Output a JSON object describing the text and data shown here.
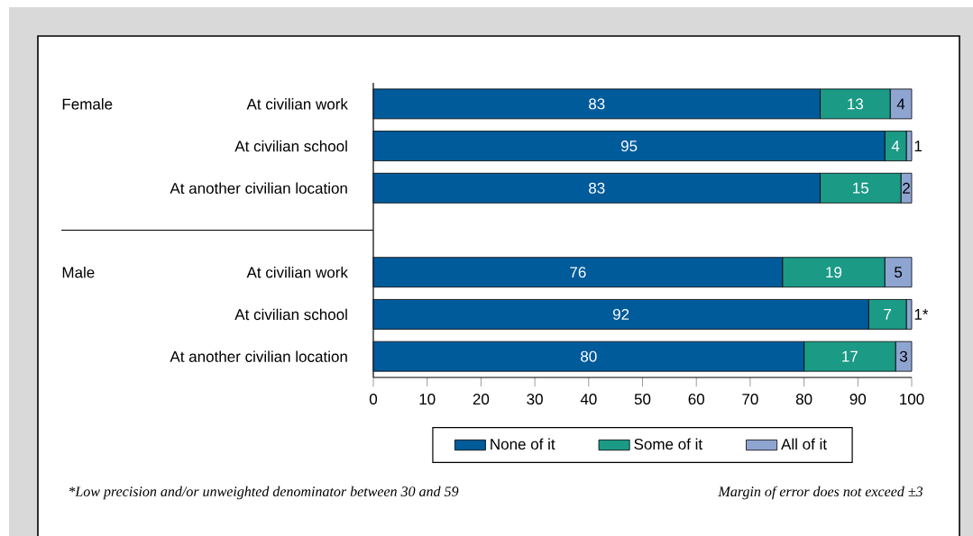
{
  "chart_data": {
    "type": "bar",
    "orientation": "horizontal",
    "stacked": true,
    "categories": [
      "At civilian work",
      "At civilian school",
      "At another civilian location",
      null,
      "At civilian work",
      "At civilian school",
      "At another civilian location"
    ],
    "series": [
      {
        "name": "None of it",
        "color": "#005b9a",
        "values": [
          83,
          95,
          83,
          null,
          76,
          92,
          80
        ],
        "value_labels": [
          "83",
          "95",
          "83",
          null,
          "76",
          "92",
          "80"
        ]
      },
      {
        "name": "Some of it",
        "color": "#1b9a86",
        "values": [
          13,
          4,
          15,
          null,
          19,
          7,
          17
        ],
        "value_labels": [
          "13",
          "4",
          "15",
          null,
          "19",
          "7",
          "17"
        ]
      },
      {
        "name": "All of it",
        "color": "#8fa5d1",
        "values": [
          4,
          1,
          2,
          null,
          5,
          1,
          3
        ],
        "value_labels": [
          "4",
          "1",
          "2",
          null,
          "5",
          "1*",
          "3"
        ]
      }
    ],
    "xlim": [
      0,
      100
    ],
    "xticks": [
      0,
      10,
      20,
      30,
      40,
      50,
      60,
      70,
      80,
      90,
      100
    ],
    "legend": "bottom",
    "annotations": [
      "Female",
      "Male",
      "*Low precision and/or unweighted denominator between 30 and 59",
      "Margin of error does not exceed ±3"
    ]
  }
}
